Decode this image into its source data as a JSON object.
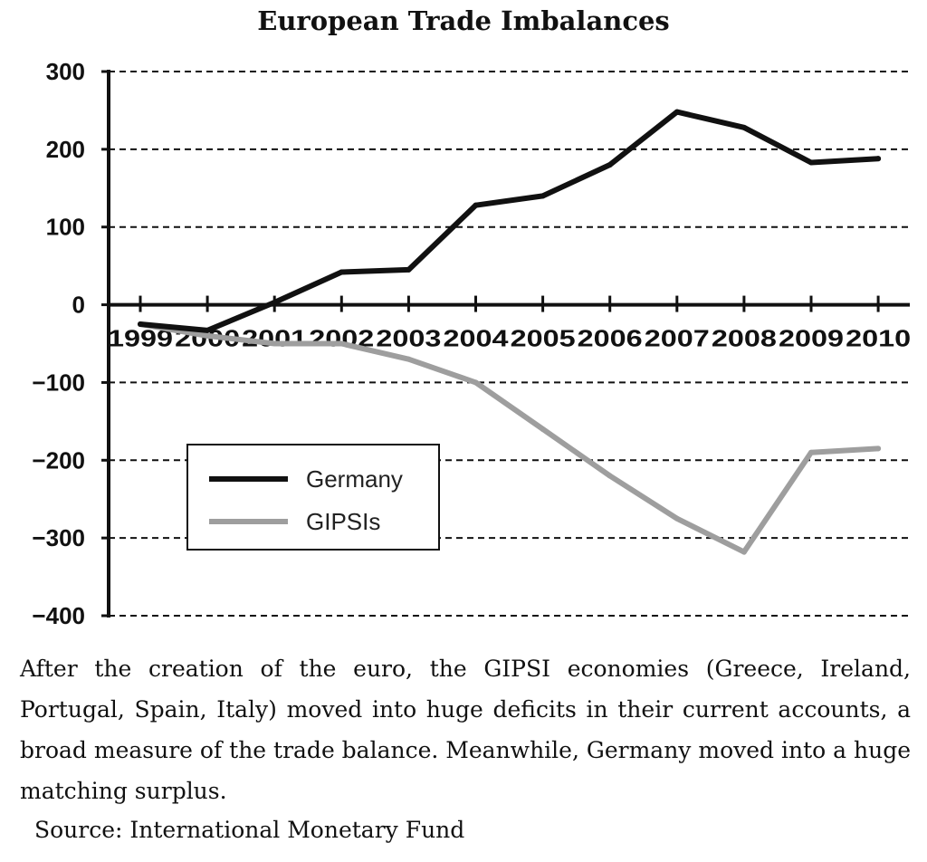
{
  "chart_data": {
    "type": "line",
    "title": "European Trade Imbalances",
    "xlabel": "",
    "ylabel": "",
    "x": [
      "1999",
      "2000",
      "2001",
      "2002",
      "2003",
      "2004",
      "2005",
      "2006",
      "2007",
      "2008",
      "2009",
      "2010"
    ],
    "ylim": [
      -400,
      300
    ],
    "yticks": [
      300,
      200,
      100,
      0,
      -100,
      -200,
      -300,
      -400
    ],
    "ytick_labels": [
      "300",
      "200",
      "100",
      "0",
      "−100",
      "−200",
      "−300",
      "−400"
    ],
    "grid": "horizontal dashed",
    "legend_position": "lower-left",
    "series": [
      {
        "name": "Germany",
        "color": "#111111",
        "values": [
          -25,
          -33,
          3,
          42,
          45,
          128,
          140,
          180,
          248,
          228,
          183,
          188
        ]
      },
      {
        "name": "GIPSIs",
        "color": "#9e9e9e",
        "values": [
          -25,
          -40,
          -50,
          -50,
          -70,
          -100,
          -160,
          -220,
          -275,
          -318,
          -190,
          -185
        ]
      }
    ]
  },
  "caption": "After the creation of the euro, the GIPSI economies (Greece, Ireland, Portugal, Spain, Italy) moved into huge deficits in their current accounts, a broad measure of the trade balance. Meanwhile, Germany moved into a huge matching surplus.",
  "source": "Source: International Monetary Fund"
}
